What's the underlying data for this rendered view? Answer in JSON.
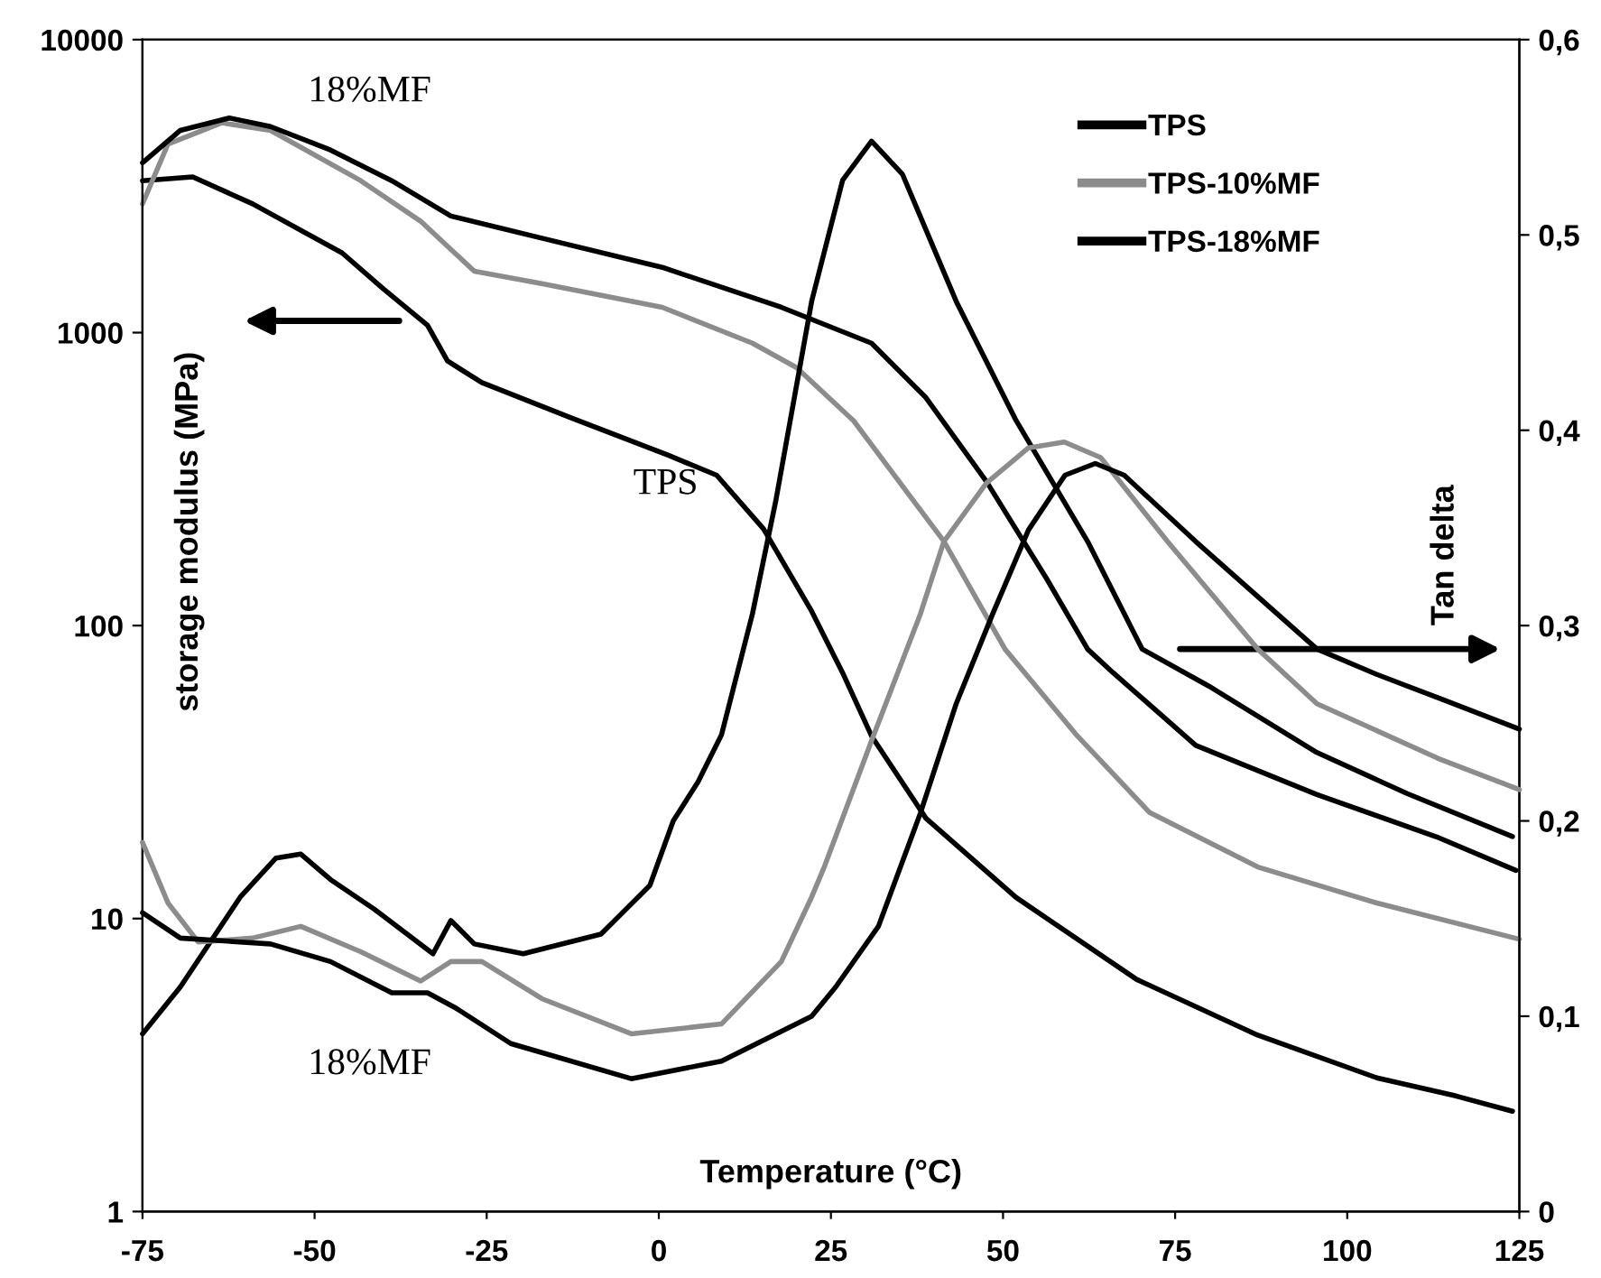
{
  "chart_data": {
    "type": "line",
    "xlabel": "Temperature (°C)",
    "ylabel": "storage modulus (MPa)",
    "y2label": "Tan delta",
    "xlim": [
      -75,
      125
    ],
    "xticks": [
      -75,
      -50,
      -25,
      0,
      25,
      50,
      75,
      100,
      125
    ],
    "ylim": [
      1,
      10000
    ],
    "yticks": [
      1,
      10,
      100,
      1000,
      10000
    ],
    "log": "y",
    "y2lim": [
      0,
      0.6
    ],
    "y2ticks": [
      {
        "value": 0,
        "label": "0"
      },
      {
        "value": 0.1,
        "label": "0,1"
      },
      {
        "value": 0.2,
        "label": "0,2"
      },
      {
        "value": 0.3,
        "label": "0,3"
      },
      {
        "value": 0.4,
        "label": "0,4"
      },
      {
        "value": 0.5,
        "label": "0,5"
      },
      {
        "value": 0.6,
        "label": "0,6"
      }
    ],
    "grid": false,
    "legend": "top right",
    "marker": "none",
    "line_style": "solid",
    "annotations": [
      "18%MF",
      "TPS",
      "18%MF"
    ],
    "series": [
      {
        "name": "TPS",
        "color": "#000000",
        "x": [
          -75,
          -67.7,
          -59,
          -46,
          -40,
          -33.6,
          -30.7,
          -25.7,
          -12.6,
          1.3,
          8.4,
          15.2,
          22.2,
          26.7,
          30.9,
          38.8,
          51.9,
          69.4,
          87,
          104.3,
          115.8,
          124
        ],
        "values": [
          3300,
          3400,
          2750,
          1870,
          1410,
          1060,
          800,
          675,
          510,
          382,
          326,
          214,
          112,
          69,
          42,
          22,
          11.8,
          6.2,
          4.0,
          2.86,
          2.48,
          2.2
        ]
      },
      {
        "name": "TPS-10%MF",
        "color": "#8c8c8c",
        "x": [
          -75,
          -71.3,
          -63.5,
          -56.4,
          -43.3,
          -34.6,
          -26.8,
          -17,
          0.5,
          13.6,
          20,
          28.3,
          41.4,
          50.3,
          60.8,
          71.3,
          87,
          104.3,
          125
        ],
        "values": [
          2750,
          4400,
          5200,
          4900,
          3300,
          2400,
          1620,
          1470,
          1220,
          920,
          760,
          500,
          194,
          83,
          42,
          23,
          15,
          11.3,
          8.5
        ]
      },
      {
        "name": "TPS-18%MF",
        "color": "#000000",
        "x": [
          -75,
          -69.5,
          -62.4,
          -56.4,
          -47.7,
          -38.8,
          -30.2,
          -17,
          0.5,
          17.8,
          30.9,
          38.8,
          47.6,
          56.3,
          62.3,
          66,
          78,
          95.6,
          113,
          124.5
        ],
        "values": [
          3800,
          4900,
          5400,
          5050,
          4200,
          3300,
          2500,
          2100,
          1670,
          1220,
          920,
          600,
          310,
          145,
          83,
          69,
          39,
          26.5,
          19,
          14.6
        ]
      },
      {
        "axis": "y2",
        "color": "#000000",
        "x": [
          -75,
          -69.5,
          -60.8,
          -55.6,
          -52,
          -47.7,
          -41.4,
          -32.8,
          -30.2,
          -26.8,
          -19.7,
          -8.4,
          -1.3,
          2.1,
          5.7,
          9.1,
          13.6,
          17,
          22.2,
          26.7,
          30.9,
          35.4,
          43.2,
          51.9,
          62.3,
          70.2,
          79.9,
          95.6,
          108.7,
          124
        ],
        "values": [
          0.091,
          0.115,
          0.161,
          0.181,
          0.183,
          0.17,
          0.155,
          0.132,
          0.149,
          0.137,
          0.132,
          0.142,
          0.167,
          0.2,
          0.22,
          0.244,
          0.306,
          0.364,
          0.466,
          0.528,
          0.548,
          0.531,
          0.466,
          0.405,
          0.343,
          0.288,
          0.269,
          0.235,
          0.214,
          0.192
        ]
      },
      {
        "axis": "y2",
        "color": "#8c8c8c",
        "x": [
          -75,
          -71.3,
          -66.9,
          -59,
          -52,
          -43.3,
          -34.6,
          -30.2,
          -25.7,
          -17,
          -4,
          9.1,
          17.8,
          22.2,
          24.1,
          30.9,
          38,
          41.4,
          47.6,
          53.7,
          58.9,
          64.2,
          73.9,
          87,
          95.6,
          113.2,
          125
        ],
        "values": [
          0.189,
          0.158,
          0.138,
          0.14,
          0.146,
          0.133,
          0.118,
          0.128,
          0.128,
          0.109,
          0.091,
          0.096,
          0.128,
          0.161,
          0.177,
          0.241,
          0.306,
          0.343,
          0.373,
          0.391,
          0.394,
          0.386,
          0.343,
          0.288,
          0.26,
          0.232,
          0.216
        ]
      },
      {
        "axis": "y2",
        "color": "#000000",
        "x": [
          -75,
          -69.5,
          -56.4,
          -47.7,
          -38.8,
          -33.6,
          -29.4,
          -21.5,
          -4,
          9.1,
          22.2,
          25.7,
          31.9,
          38,
          43.2,
          48.5,
          53.7,
          59,
          63.4,
          67.6,
          78,
          95.6,
          104.3,
          113.2,
          125
        ],
        "values": [
          0.153,
          0.14,
          0.137,
          0.128,
          0.112,
          0.112,
          0.104,
          0.086,
          0.068,
          0.077,
          0.1,
          0.115,
          0.146,
          0.204,
          0.26,
          0.306,
          0.349,
          0.377,
          0.383,
          0.377,
          0.343,
          0.288,
          0.275,
          0.263,
          0.247
        ]
      }
    ]
  }
}
